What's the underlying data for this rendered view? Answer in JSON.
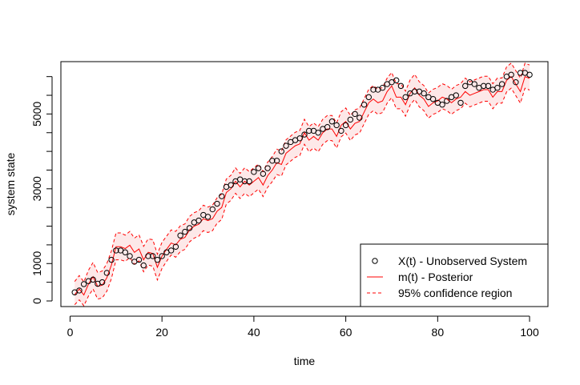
{
  "chart_data": {
    "type": "line",
    "xlabel": "time",
    "ylabel": "system state",
    "xlim": [
      -2,
      104
    ],
    "ylim": [
      -150,
      6400
    ],
    "x_ticks": [
      0,
      20,
      40,
      60,
      80,
      100
    ],
    "y_ticks": [
      0,
      1000,
      3000,
      5000
    ],
    "y_minor_ticks": [
      500,
      1500,
      2000,
      2500,
      3500,
      4000,
      4500,
      5500,
      6000
    ],
    "grid": false,
    "legend_position": "bottom-right",
    "colors": {
      "observed": "#000000",
      "posterior": "#ff0000",
      "band_fill": "#fde8e8"
    },
    "x": [
      1,
      2,
      3,
      4,
      5,
      6,
      7,
      8,
      9,
      10,
      11,
      12,
      13,
      14,
      15,
      16,
      17,
      18,
      19,
      20,
      21,
      22,
      23,
      24,
      25,
      26,
      27,
      28,
      29,
      30,
      31,
      32,
      33,
      34,
      35,
      36,
      37,
      38,
      39,
      40,
      41,
      42,
      43,
      44,
      45,
      46,
      47,
      48,
      49,
      50,
      51,
      52,
      53,
      54,
      55,
      56,
      57,
      58,
      59,
      60,
      61,
      62,
      63,
      64,
      65,
      66,
      67,
      68,
      69,
      70,
      71,
      72,
      73,
      74,
      75,
      76,
      77,
      78,
      79,
      80,
      81,
      82,
      83,
      84,
      85,
      86,
      87,
      88,
      89,
      90,
      91,
      92,
      93,
      94,
      95,
      96,
      97,
      98,
      99,
      100
    ],
    "series": [
      {
        "name": "X(t) - Unobserved System",
        "style": "points",
        "values": [
          230,
          280,
          450,
          530,
          570,
          460,
          500,
          750,
          1100,
          1350,
          1350,
          1300,
          1200,
          1050,
          1100,
          950,
          1200,
          1200,
          1100,
          1200,
          1300,
          1350,
          1450,
          1750,
          1850,
          1950,
          2100,
          2150,
          2300,
          2250,
          2450,
          2600,
          2800,
          3050,
          3100,
          3200,
          3250,
          3200,
          3200,
          3450,
          3550,
          3400,
          3550,
          3750,
          3750,
          4000,
          4150,
          4250,
          4300,
          4350,
          4450,
          4550,
          4550,
          4500,
          4600,
          4650,
          4800,
          4700,
          4550,
          4700,
          4850,
          5000,
          4900,
          5250,
          5450,
          5650,
          5650,
          5700,
          5800,
          5850,
          5900,
          5750,
          5450,
          5550,
          5600,
          5600,
          5550,
          5450,
          5400,
          5300,
          5250,
          5350,
          5450,
          5500,
          5300,
          5750,
          5850,
          5800,
          5700,
          5750,
          5750,
          5650,
          5700,
          5800,
          6000,
          6050,
          5850,
          6100,
          6100,
          6050
        ]
      },
      {
        "name": "m(t) - Posterior",
        "style": "line",
        "values": [
          170,
          320,
          160,
          450,
          650,
          390,
          420,
          620,
          960,
          1450,
          1450,
          1400,
          1490,
          1300,
          1390,
          1100,
          1300,
          1270,
          900,
          1200,
          1380,
          1550,
          1500,
          1650,
          1700,
          1900,
          2000,
          2050,
          2200,
          2150,
          2200,
          2400,
          2500,
          2900,
          3000,
          3200,
          3050,
          3200,
          3100,
          3200,
          3300,
          3100,
          3350,
          3500,
          3700,
          3650,
          3950,
          4050,
          4150,
          4200,
          4500,
          4300,
          4400,
          4300,
          4500,
          4600,
          4600,
          4400,
          4700,
          4800,
          4600,
          4750,
          4800,
          5050,
          5300,
          5400,
          5300,
          5350,
          5600,
          5750,
          5450,
          5450,
          5250,
          5550,
          5700,
          5500,
          5400,
          5200,
          5300,
          5350,
          5450,
          5400,
          5300,
          5400,
          5450,
          5600,
          5500,
          5550,
          5600,
          5650,
          5650,
          5450,
          5600,
          5600,
          5900,
          6000,
          5800,
          5600,
          6000,
          5950
        ]
      },
      {
        "name": "95% confidence region",
        "style": "dashed-band",
        "lower": [
          -100,
          30,
          -130,
          130,
          320,
          50,
          80,
          260,
          600,
          1100,
          1100,
          1060,
          1160,
          980,
          1070,
          780,
          960,
          930,
          560,
          870,
          1060,
          1230,
          1170,
          1320,
          1380,
          1580,
          1680,
          1730,
          1880,
          1830,
          1880,
          2080,
          2180,
          2590,
          2690,
          2880,
          2740,
          2880,
          2790,
          2890,
          2990,
          2790,
          3040,
          3190,
          3380,
          3340,
          3640,
          3740,
          3840,
          3890,
          4190,
          3990,
          4090,
          3990,
          4190,
          4290,
          4290,
          4090,
          4390,
          4490,
          4290,
          4440,
          4490,
          4740,
          4990,
          5090,
          4990,
          5040,
          5290,
          5440,
          5140,
          5140,
          4940,
          5240,
          5390,
          5190,
          5090,
          4890,
          4990,
          5040,
          5140,
          5090,
          4990,
          5090,
          5140,
          5290,
          5190,
          5240,
          5290,
          5340,
          5340,
          5140,
          5290,
          5290,
          5590,
          5690,
          5490,
          5290,
          5690,
          5640
        ],
        "upper": [
          520,
          680,
          510,
          820,
          1030,
          760,
          800,
          1000,
          1340,
          1820,
          1820,
          1760,
          1860,
          1680,
          1770,
          1460,
          1660,
          1640,
          1250,
          1570,
          1730,
          1900,
          1860,
          2010,
          2060,
          2260,
          2360,
          2410,
          2560,
          2510,
          2560,
          2760,
          2860,
          3260,
          3360,
          3560,
          3410,
          3560,
          3460,
          3560,
          3660,
          3460,
          3710,
          3860,
          4060,
          4010,
          4310,
          4410,
          4510,
          4560,
          4860,
          4660,
          4760,
          4660,
          4860,
          4960,
          4960,
          4760,
          5060,
          5160,
          4960,
          5110,
          5160,
          5410,
          5660,
          5760,
          5660,
          5710,
          5960,
          6110,
          5810,
          5810,
          5610,
          5910,
          6060,
          5860,
          5760,
          5560,
          5660,
          5710,
          5810,
          5760,
          5660,
          5760,
          5810,
          5960,
          5860,
          5910,
          5960,
          6010,
          6010,
          5810,
          5960,
          5960,
          6260,
          6360,
          6160,
          5960,
          6360,
          6310
        ]
      }
    ]
  }
}
